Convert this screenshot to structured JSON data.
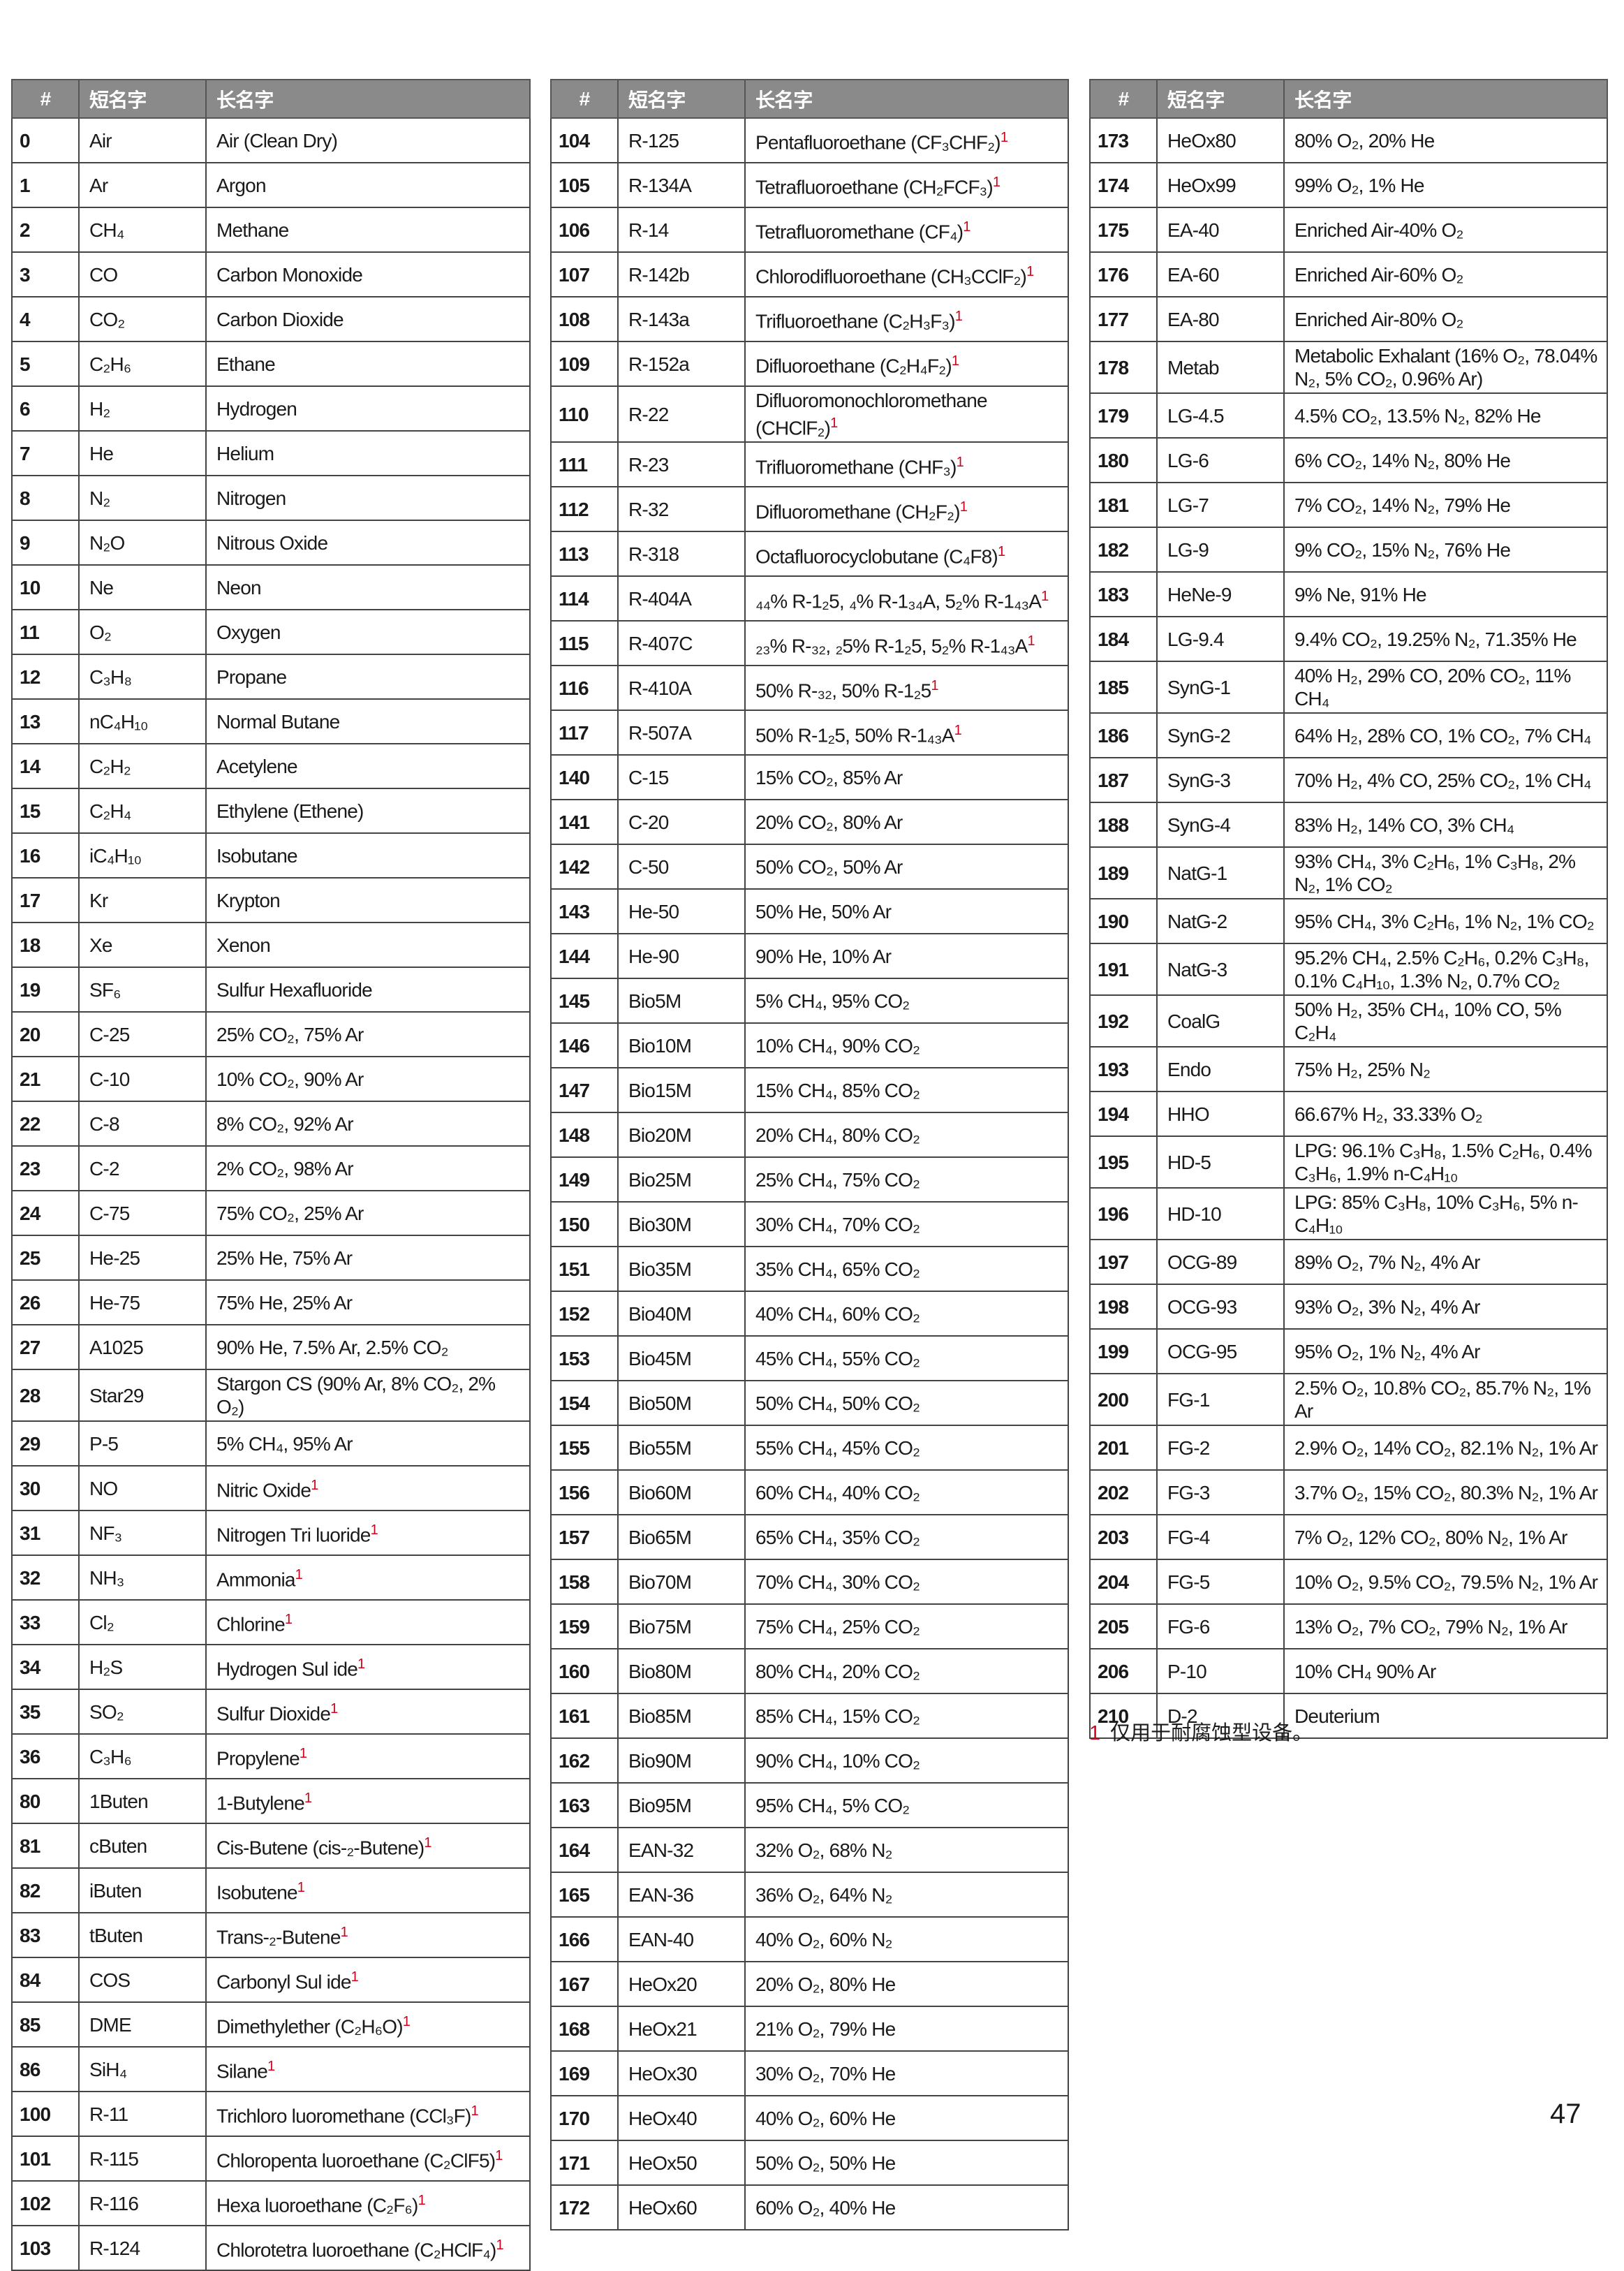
{
  "tables": [
    {
      "headers": [
        "#",
        "短名字",
        "长名字"
      ],
      "rows": [
        {
          "id": "0",
          "short": "Air",
          "long": "Air (Clean Dry)"
        },
        {
          "id": "1",
          "short": "Ar",
          "long": "Argon"
        },
        {
          "id": "2",
          "short": "CH₄",
          "long": "Methane"
        },
        {
          "id": "3",
          "short": "CO",
          "long": "Carbon Monoxide"
        },
        {
          "id": "4",
          "short": "CO₂",
          "long": "Carbon Dioxide"
        },
        {
          "id": "5",
          "short": "C₂H₆",
          "long": "Ethane"
        },
        {
          "id": "6",
          "short": "H₂",
          "long": "Hydrogen"
        },
        {
          "id": "7",
          "short": "He",
          "long": "Helium"
        },
        {
          "id": "8",
          "short": "N₂",
          "long": "Nitrogen"
        },
        {
          "id": "9",
          "short": "N₂O",
          "long": "Nitrous Oxide"
        },
        {
          "id": "10",
          "short": "Ne",
          "long": "Neon"
        },
        {
          "id": "11",
          "short": "O₂",
          "long": "Oxygen"
        },
        {
          "id": "12",
          "short": "C₃H₈",
          "long": "Propane"
        },
        {
          "id": "13",
          "short": "nC₄H₁₀",
          "long": "Normal Butane"
        },
        {
          "id": "14",
          "short": "C₂H₂",
          "long": "Acetylene"
        },
        {
          "id": "15",
          "short": "C₂H₄",
          "long": "Ethylene (Ethene)"
        },
        {
          "id": "16",
          "short": "iC₄H₁₀",
          "long": "Isobutane"
        },
        {
          "id": "17",
          "short": "Kr",
          "long": "Krypton"
        },
        {
          "id": "18",
          "short": "Xe",
          "long": "Xenon"
        },
        {
          "id": "19",
          "short": "SF₆",
          "long": "Sulfur Hexafluoride"
        },
        {
          "id": "20",
          "short": "C-25",
          "long": "25% CO₂, 75% Ar"
        },
        {
          "id": "21",
          "short": "C-10",
          "long": "10% CO₂, 90% Ar"
        },
        {
          "id": "22",
          "short": "C-8",
          "long": "8% CO₂, 92% Ar"
        },
        {
          "id": "23",
          "short": "C-2",
          "long": "2% CO₂, 98% Ar"
        },
        {
          "id": "24",
          "short": "C-75",
          "long": "75% CO₂, 25% Ar"
        },
        {
          "id": "25",
          "short": "He-25",
          "long": "25% He, 75% Ar"
        },
        {
          "id": "26",
          "short": "He-75",
          "long": "75% He, 25% Ar"
        },
        {
          "id": "27",
          "short": "A1025",
          "long": "90% He, 7.5% Ar, 2.5% CO₂"
        },
        {
          "id": "28",
          "short": "Star29",
          "long": "Stargon CS (90% Ar, 8% CO₂, 2% O₂)"
        },
        {
          "id": "29",
          "short": "P-5",
          "long": "5% CH₄, 95% Ar"
        },
        {
          "id": "30",
          "short": "NO",
          "long": "Nitric Oxide",
          "note": "1"
        },
        {
          "id": "31",
          "short": "NF₃",
          "long": "Nitrogen Tri luoride",
          "note": "1"
        },
        {
          "id": "32",
          "short": "NH₃",
          "long": "Ammonia",
          "note": "1"
        },
        {
          "id": "33",
          "short": "Cl₂",
          "long": "Chlorine",
          "note": "1"
        },
        {
          "id": "34",
          "short": "H₂S",
          "long": "Hydrogen Sul ide",
          "note": "1"
        },
        {
          "id": "35",
          "short": "SO₂",
          "long": "Sulfur Dioxide",
          "note": "1"
        },
        {
          "id": "36",
          "short": "C₃H₆",
          "long": "Propylene",
          "note": "1"
        },
        {
          "id": "80",
          "short": "1Buten",
          "long": "1-Butylene",
          "note": "1"
        },
        {
          "id": "81",
          "short": "cButen",
          "long": "Cis-Butene (cis-₂-Butene)",
          "note": "1"
        },
        {
          "id": "82",
          "short": "iButen",
          "long": "Isobutene",
          "note": "1"
        },
        {
          "id": "83",
          "short": "tButen",
          "long": "Trans-₂-Butene",
          "note": "1"
        },
        {
          "id": "84",
          "short": "COS",
          "long": "Carbonyl Sul ide",
          "note": "1"
        },
        {
          "id": "85",
          "short": "DME",
          "long": "Dimethylether (C₂H₆O)",
          "note": "1"
        },
        {
          "id": "86",
          "short": "SiH₄",
          "long": "Silane",
          "note": "1"
        },
        {
          "id": "100",
          "short": "R-11",
          "long": "Trichloro luoromethane (CCl₃F)",
          "note": "1"
        },
        {
          "id": "101",
          "short": "R-115",
          "long": "Chloropenta luoroethane (C₂ClF5)",
          "note": "1"
        },
        {
          "id": "102",
          "short": "R-116",
          "long": "Hexa luoroethane (C₂F₆)",
          "note": "1"
        },
        {
          "id": "103",
          "short": "R-124",
          "long": "Chlorotetra luoroethane (C₂HClF₄)",
          "note": "1"
        }
      ]
    },
    {
      "headers": [
        "#",
        "短名字",
        "长名字"
      ],
      "rows": [
        {
          "id": "104",
          "short": "R-125",
          "long": "Pentafluoroethane (CF₃CHF₂)",
          "note": "1"
        },
        {
          "id": "105",
          "short": "R-134A",
          "long": "Tetrafluoroethane (CH₂FCF₃)",
          "note": "1"
        },
        {
          "id": "106",
          "short": "R-14",
          "long": "Tetrafluoromethane (CF₄)",
          "note": "1"
        },
        {
          "id": "107",
          "short": "R-142b",
          "long": "Chlorodifluoroethane (CH₃CClF₂)",
          "note": "1"
        },
        {
          "id": "108",
          "short": "R-143a",
          "long": "Trifluoroethane (C₂H₃F₃)",
          "note": "1"
        },
        {
          "id": "109",
          "short": "R-152a",
          "long": "Difluoroethane (C₂H₄F₂)",
          "note": "1"
        },
        {
          "id": "110",
          "short": "R-22",
          "long": "Difluoromonochloromethane (CHClF₂)",
          "note": "1"
        },
        {
          "id": "111",
          "short": "R-23",
          "long": "Trifluoromethane (CHF₃)",
          "note": "1"
        },
        {
          "id": "112",
          "short": "R-32",
          "long": "Difluoromethane (CH₂F₂)",
          "note": "1"
        },
        {
          "id": "113",
          "short": "R-318",
          "long": "Octafluorocyclobutane (C₄F8)",
          "note": "1"
        },
        {
          "id": "114",
          "short": "R-404A",
          "long": "₄₄% R-1₂5, ₄% R-1₃₄A, 5₂% R-1₄₃A",
          "note": "1"
        },
        {
          "id": "115",
          "short": "R-407C",
          "long": "₂₃% R-₃₂, ₂5% R-1₂5, 5₂% R-1₄₃A",
          "note": "1"
        },
        {
          "id": "116",
          "short": "R-410A",
          "long": "50% R-₃₂, 50% R-1₂5",
          "note": "1"
        },
        {
          "id": "117",
          "short": "R-507A",
          "long": "50% R-1₂5, 50% R-1₄₃A",
          "note": "1"
        },
        {
          "id": "140",
          "short": "C-15",
          "long": "15% CO₂, 85% Ar"
        },
        {
          "id": "141",
          "short": "C-20",
          "long": "20% CO₂, 80% Ar"
        },
        {
          "id": "142",
          "short": "C-50",
          "long": "50% CO₂, 50% Ar"
        },
        {
          "id": "143",
          "short": "He-50",
          "long": "50% He, 50% Ar"
        },
        {
          "id": "144",
          "short": "He-90",
          "long": "90% He, 10% Ar"
        },
        {
          "id": "145",
          "short": "Bio5M",
          "long": "5% CH₄, 95% CO₂"
        },
        {
          "id": "146",
          "short": "Bio10M",
          "long": "10% CH₄, 90% CO₂"
        },
        {
          "id": "147",
          "short": "Bio15M",
          "long": "15% CH₄, 85% CO₂"
        },
        {
          "id": "148",
          "short": "Bio20M",
          "long": "20% CH₄, 80% CO₂"
        },
        {
          "id": "149",
          "short": "Bio25M",
          "long": "25% CH₄, 75% CO₂"
        },
        {
          "id": "150",
          "short": "Bio30M",
          "long": "30% CH₄, 70% CO₂"
        },
        {
          "id": "151",
          "short": "Bio35M",
          "long": "35% CH₄, 65% CO₂"
        },
        {
          "id": "152",
          "short": "Bio40M",
          "long": "40% CH₄, 60% CO₂"
        },
        {
          "id": "153",
          "short": "Bio45M",
          "long": "45% CH₄, 55% CO₂"
        },
        {
          "id": "154",
          "short": "Bio50M",
          "long": "50% CH₄, 50% CO₂"
        },
        {
          "id": "155",
          "short": "Bio55M",
          "long": "55% CH₄, 45% CO₂"
        },
        {
          "id": "156",
          "short": "Bio60M",
          "long": "60% CH₄, 40% CO₂"
        },
        {
          "id": "157",
          "short": "Bio65M",
          "long": "65% CH₄, 35% CO₂"
        },
        {
          "id": "158",
          "short": "Bio70M",
          "long": "70% CH₄, 30% CO₂"
        },
        {
          "id": "159",
          "short": "Bio75M",
          "long": "75% CH₄, 25% CO₂"
        },
        {
          "id": "160",
          "short": "Bio80M",
          "long": "80% CH₄, 20% CO₂"
        },
        {
          "id": "161",
          "short": "Bio85M",
          "long": "85% CH₄, 15% CO₂"
        },
        {
          "id": "162",
          "short": "Bio90M",
          "long": "90% CH₄, 10% CO₂"
        },
        {
          "id": "163",
          "short": "Bio95M",
          "long": "95% CH₄, 5% CO₂"
        },
        {
          "id": "164",
          "short": "EAN-32",
          "long": "32% O₂, 68% N₂"
        },
        {
          "id": "165",
          "short": "EAN-36",
          "long": "36% O₂, 64% N₂"
        },
        {
          "id": "166",
          "short": "EAN-40",
          "long": "40% O₂, 60% N₂"
        },
        {
          "id": "167",
          "short": "HeOx20",
          "long": "20% O₂, 80% He"
        },
        {
          "id": "168",
          "short": "HeOx21",
          "long": "21% O₂, 79% He"
        },
        {
          "id": "169",
          "short": "HeOx30",
          "long": "30% O₂, 70% He"
        },
        {
          "id": "170",
          "short": "HeOx40",
          "long": "40% O₂, 60% He"
        },
        {
          "id": "171",
          "short": "HeOx50",
          "long": "50% O₂, 50% He"
        },
        {
          "id": "172",
          "short": "HeOx60",
          "long": "60% O₂, 40% He"
        }
      ]
    },
    {
      "headers": [
        "#",
        "短名字",
        "长名字"
      ],
      "rows": [
        {
          "id": "173",
          "short": "HeOx80",
          "long": "80% O₂, 20% He"
        },
        {
          "id": "174",
          "short": "HeOx99",
          "long": "99% O₂, 1% He"
        },
        {
          "id": "175",
          "short": "EA-40",
          "long": "Enriched Air-40% O₂"
        },
        {
          "id": "176",
          "short": "EA-60",
          "long": "Enriched Air-60% O₂"
        },
        {
          "id": "177",
          "short": "EA-80",
          "long": "Enriched Air-80% O₂"
        },
        {
          "id": "178",
          "short": "Metab",
          "long": "Metabolic Exhalant (16% O₂, 78.04% N₂, 5% CO₂, 0.96% Ar)"
        },
        {
          "id": "179",
          "short": "LG-4.5",
          "long": "4.5% CO₂, 13.5% N₂, 82% He"
        },
        {
          "id": "180",
          "short": "LG-6",
          "long": "6% CO₂, 14% N₂, 80% He"
        },
        {
          "id": "181",
          "short": "LG-7",
          "long": "7% CO₂, 14% N₂, 79% He"
        },
        {
          "id": "182",
          "short": "LG-9",
          "long": "9% CO₂, 15% N₂, 76% He"
        },
        {
          "id": "183",
          "short": "HeNe-9",
          "long": "9% Ne, 91% He"
        },
        {
          "id": "184",
          "short": "LG-9.4",
          "long": "9.4% CO₂, 19.25% N₂, 71.35% He"
        },
        {
          "id": "185",
          "short": "SynG-1",
          "long": "40% H₂, 29% CO, 20% CO₂, 11% CH₄"
        },
        {
          "id": "186",
          "short": "SynG-2",
          "long": "64% H₂, 28% CO, 1% CO₂, 7% CH₄"
        },
        {
          "id": "187",
          "short": "SynG-3",
          "long": "70% H₂, 4% CO, 25% CO₂, 1% CH₄"
        },
        {
          "id": "188",
          "short": "SynG-4",
          "long": "83% H₂, 14% CO, 3% CH₄"
        },
        {
          "id": "189",
          "short": "NatG-1",
          "long": "93% CH₄, 3% C₂H₆, 1% C₃H₈, 2% N₂, 1% CO₂"
        },
        {
          "id": "190",
          "short": "NatG-2",
          "long": "95% CH₄, 3% C₂H₆, 1% N₂, 1% CO₂"
        },
        {
          "id": "191",
          "short": "NatG-3",
          "long": "95.2% CH₄, 2.5% C₂H₆, 0.2% C₃H₈, 0.1% C₄H₁₀, 1.3% N₂, 0.7% CO₂"
        },
        {
          "id": "192",
          "short": "CoalG",
          "long": "50% H₂, 35% CH₄, 10% CO, 5% C₂H₄"
        },
        {
          "id": "193",
          "short": "Endo",
          "long": "75% H₂, 25% N₂"
        },
        {
          "id": "194",
          "short": "HHO",
          "long": "66.67% H₂, 33.33% O₂"
        },
        {
          "id": "195",
          "short": "HD-5",
          "long": "LPG: 96.1% C₃H₈, 1.5% C₂H₆, 0.4% C₃H₆, 1.9% n-C₄H₁₀"
        },
        {
          "id": "196",
          "short": "HD-10",
          "long": "LPG: 85% C₃H₈, 10% C₃H₆, 5% n-C₄H₁₀"
        },
        {
          "id": "197",
          "short": "OCG-89",
          "long": "89% O₂, 7% N₂, 4% Ar"
        },
        {
          "id": "198",
          "short": "OCG-93",
          "long": "93% O₂, 3% N₂, 4% Ar"
        },
        {
          "id": "199",
          "short": "OCG-95",
          "long": "95% O₂, 1% N₂, 4% Ar"
        },
        {
          "id": "200",
          "short": "FG-1",
          "long": "2.5% O₂, 10.8% CO₂, 85.7% N₂, 1% Ar"
        },
        {
          "id": "201",
          "short": "FG-2",
          "long": "2.9% O₂, 14% CO₂, 82.1% N₂, 1% Ar"
        },
        {
          "id": "202",
          "short": "FG-3",
          "long": "3.7% O₂, 15% CO₂, 80.3% N₂, 1% Ar"
        },
        {
          "id": "203",
          "short": "FG-4",
          "long": "7% O₂, 12% CO₂, 80% N₂, 1% Ar"
        },
        {
          "id": "204",
          "short": "FG-5",
          "long": "10% O₂, 9.5% CO₂, 79.5% N₂, 1% Ar"
        },
        {
          "id": "205",
          "short": "FG-6",
          "long": "13% O₂, 7% CO₂, 79% N₂, 1% Ar"
        },
        {
          "id": "206",
          "short": "P-10",
          "long": "10% CH₄ 90% Ar"
        },
        {
          "id": "210",
          "short": "D-2",
          "long": "Deuterium"
        }
      ]
    }
  ],
  "footnote": {
    "mark": "1",
    "text": "仅用于耐腐蚀型设备。"
  },
  "page_number": "47"
}
